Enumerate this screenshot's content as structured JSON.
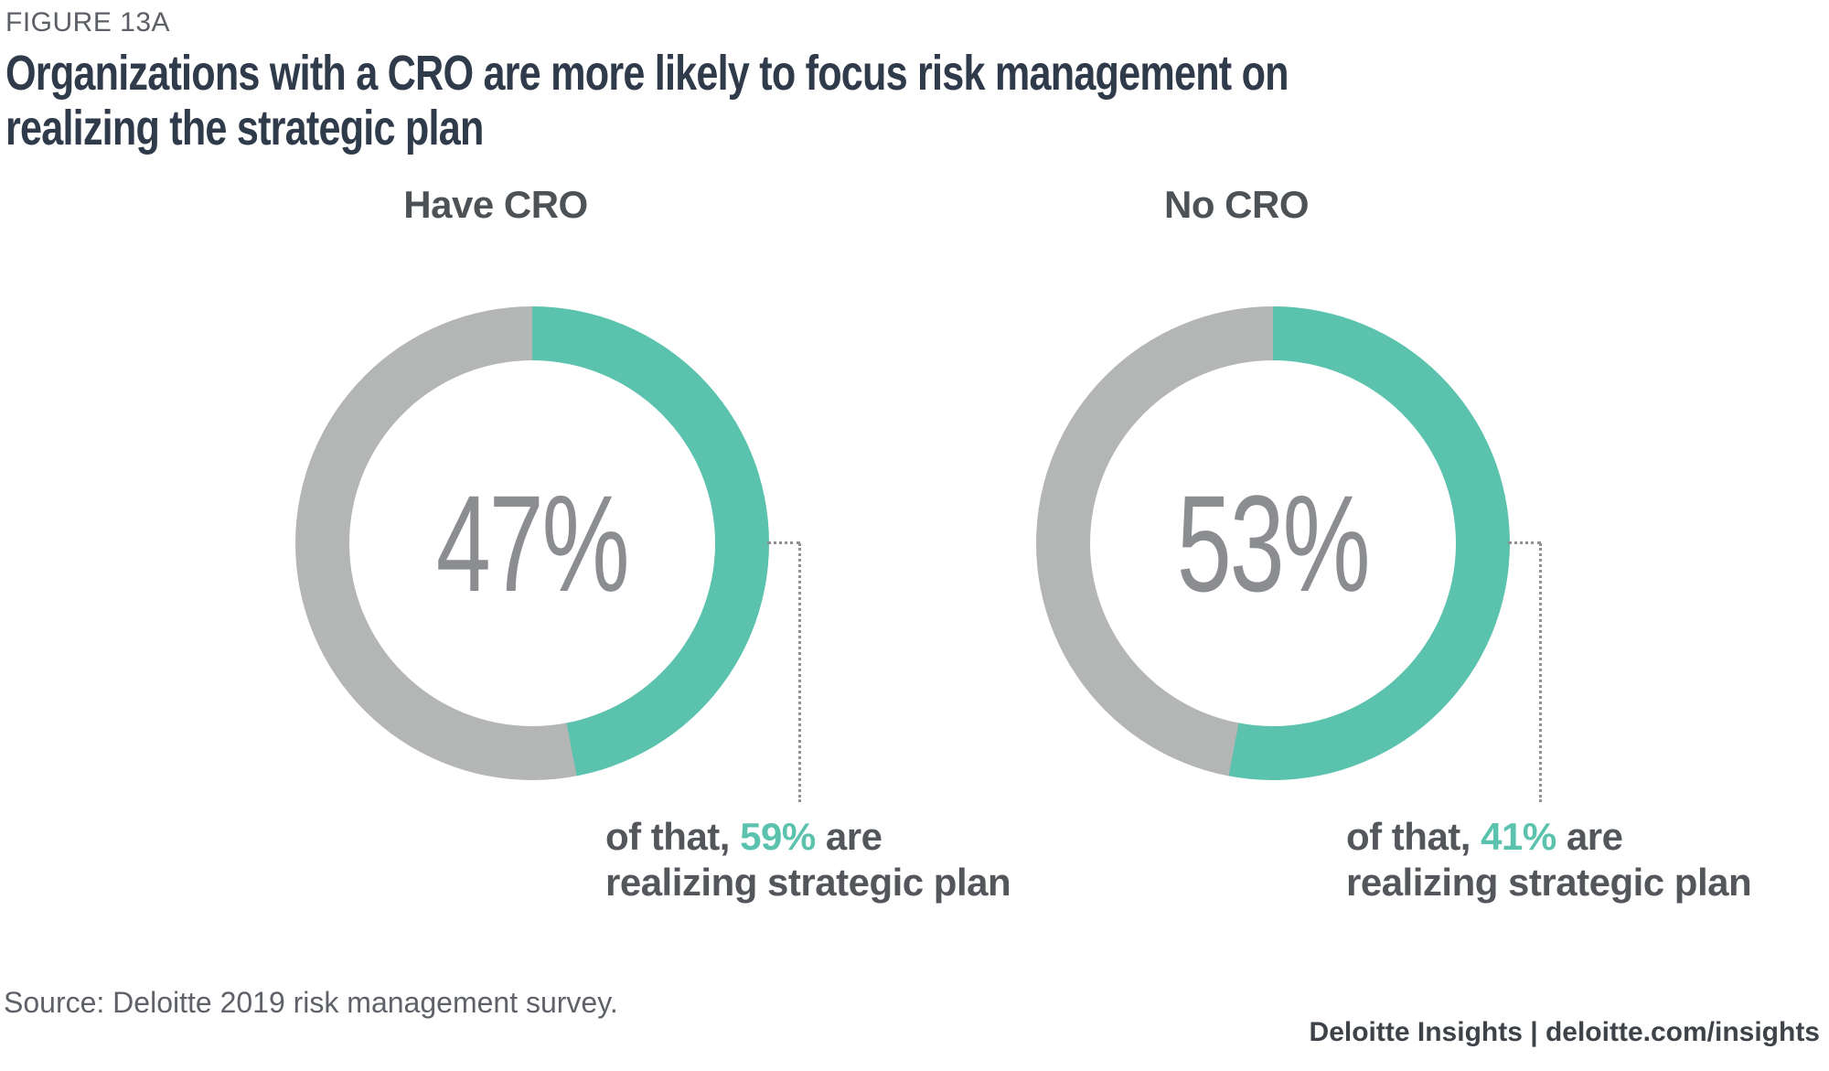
{
  "figure_label": "FIGURE 13A",
  "title": {
    "line1": "Organizations with a CRO are more likely to focus risk management on",
    "line2": "realizing the strategic plan"
  },
  "chart_data": {
    "type": "pie",
    "subtype": "paired-donut",
    "legend": "none",
    "donuts": [
      {
        "label": "Have CRO",
        "value_pct": 47,
        "value_label": "47%",
        "remainder_pct": 53,
        "annotation": {
          "prefix": "of that, ",
          "highlight": "59%",
          "suffix": " are realizing strategic plan"
        },
        "colors": {
          "value": "#5bc2ad",
          "remainder": "#b4b6b6"
        }
      },
      {
        "label": "No CRO",
        "value_pct": 53,
        "value_label": "53%",
        "remainder_pct": 47,
        "annotation": {
          "prefix": "of that, ",
          "highlight": "41%",
          "suffix": " are realizing strategic plan"
        },
        "colors": {
          "value": "#5bc2ad",
          "remainder": "#b4b6b6"
        }
      }
    ],
    "notes": "Green segment starts at 12 o'clock and sweeps clockwise by value_pct; gray is remainder; dotted leader from 3 o'clock edge down to annotation."
  },
  "source": "Source: Deloitte 2019 risk management survey.",
  "footer_text": "Deloitte Insights | deloitte.com/insights"
}
